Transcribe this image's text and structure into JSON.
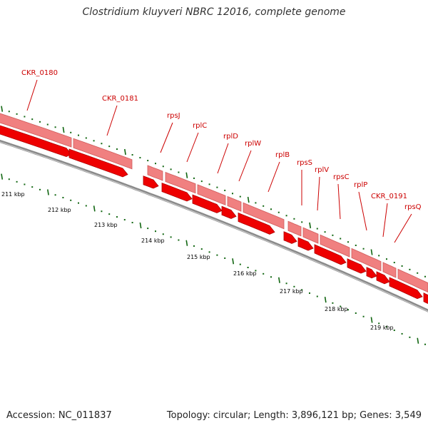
{
  "title": "Clostridium kluyveri NBRC 12016, complete genome",
  "footer": {
    "accession": "Accession: NC_011837",
    "stats": "Topology: circular; Length: 3,896,121 bp; Genes: 3,549"
  },
  "colors": {
    "cds_forward": "#f08080",
    "cds_forward_edge": "#d05a5a",
    "cds_reverse": "#ee0000",
    "backbone": "#777777",
    "tick": "#116611",
    "label": "#cc0000"
  },
  "scale_labels": [
    "211 kbp",
    "212 kbp",
    "213 kbp",
    "214 kbp",
    "215 kbp",
    "216 kbp",
    "217 kbp",
    "218 kbp",
    "219 kbp"
  ],
  "gene_labels": [
    "CKR_0180",
    "CKR_0181",
    "rpsJ",
    "rplC",
    "rplD",
    "rplW",
    "rplB",
    "rpsS",
    "rplV",
    "rpsC",
    "rplP",
    "CKR_0191",
    "rpsQ"
  ]
}
